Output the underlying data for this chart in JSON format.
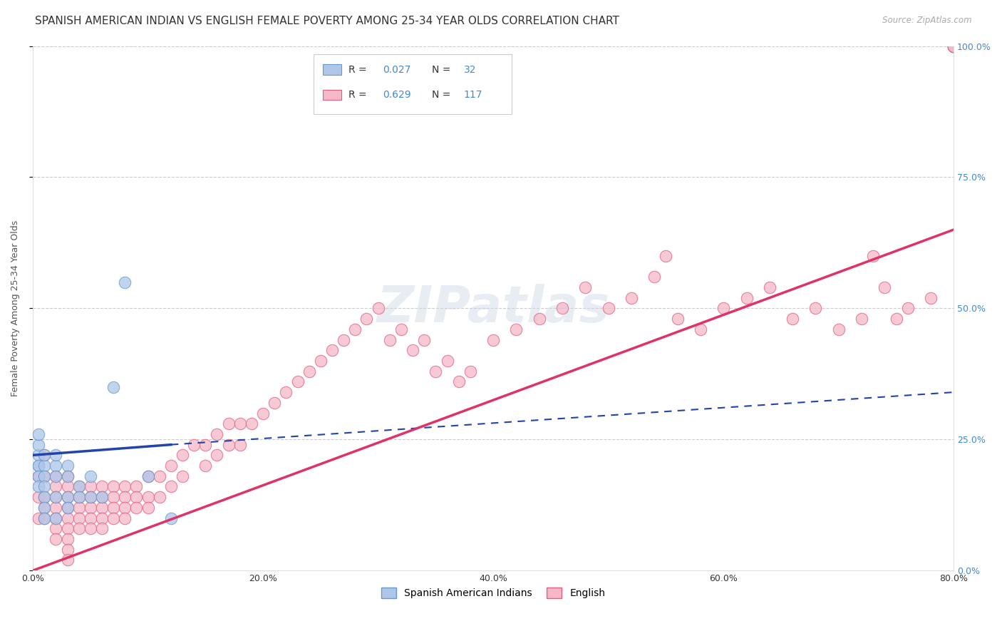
{
  "title": "SPANISH AMERICAN INDIAN VS ENGLISH FEMALE POVERTY AMONG 25-34 YEAR OLDS CORRELATION CHART",
  "source": "Source: ZipAtlas.com",
  "ylabel": "Female Poverty Among 25-34 Year Olds",
  "xlim": [
    0,
    80
  ],
  "ylim": [
    0,
    100
  ],
  "blue_color": "#aec6e8",
  "blue_edge": "#6699cc",
  "pink_color": "#f5b8c8",
  "pink_edge": "#e06080",
  "blue_line_color": "#2244aa",
  "pink_line_color": "#dd3366",
  "legend_label_blue": "Spanish American Indians",
  "legend_label_pink": "English",
  "background_color": "#ffffff",
  "grid_color": "#cccccc",
  "right_axis_color": "#4488cc",
  "watermark": "ZIPatlas",
  "blue_x": [
    0.5,
    0.5,
    0.5,
    0.5,
    0.5,
    0.5,
    0.5,
    1,
    1,
    1,
    1,
    1,
    1,
    1,
    2,
    2,
    2,
    2,
    2,
    3,
    3,
    3,
    3,
    4,
    4,
    5,
    5,
    6,
    7,
    8,
    10,
    12
  ],
  "blue_y": [
    20,
    22,
    24,
    26,
    20,
    18,
    16,
    20,
    22,
    18,
    16,
    14,
    12,
    10,
    20,
    22,
    18,
    14,
    10,
    20,
    18,
    14,
    12,
    16,
    14,
    18,
    14,
    14,
    35,
    55,
    18,
    10
  ],
  "pink_x": [
    0.5,
    0.5,
    0.5,
    1,
    1,
    1,
    1,
    1,
    2,
    2,
    2,
    2,
    2,
    2,
    2,
    3,
    3,
    3,
    3,
    3,
    3,
    3,
    3,
    3,
    4,
    4,
    4,
    4,
    4,
    5,
    5,
    5,
    5,
    5,
    6,
    6,
    6,
    6,
    6,
    7,
    7,
    7,
    7,
    8,
    8,
    8,
    8,
    9,
    9,
    9,
    10,
    10,
    10,
    11,
    11,
    12,
    12,
    13,
    13,
    14,
    15,
    15,
    16,
    16,
    17,
    17,
    18,
    18,
    19,
    20,
    21,
    22,
    23,
    24,
    25,
    26,
    27,
    28,
    29,
    30,
    31,
    32,
    33,
    34,
    35,
    36,
    37,
    38,
    40,
    42,
    44,
    46,
    48,
    50,
    52,
    54,
    55,
    56,
    58,
    60,
    62,
    64,
    66,
    68,
    70,
    72,
    73,
    74,
    75,
    76,
    78,
    80,
    80,
    80,
    80,
    80,
    80
  ],
  "pink_y": [
    18,
    14,
    10,
    22,
    18,
    14,
    12,
    10,
    18,
    16,
    14,
    12,
    10,
    8,
    6,
    18,
    16,
    14,
    12,
    10,
    8,
    6,
    4,
    2,
    16,
    14,
    12,
    10,
    8,
    16,
    14,
    12,
    10,
    8,
    16,
    14,
    12,
    10,
    8,
    16,
    14,
    12,
    10,
    16,
    14,
    12,
    10,
    16,
    14,
    12,
    18,
    14,
    12,
    18,
    14,
    20,
    16,
    22,
    18,
    24,
    24,
    20,
    26,
    22,
    28,
    24,
    28,
    24,
    28,
    30,
    32,
    34,
    36,
    38,
    40,
    42,
    44,
    46,
    48,
    50,
    44,
    46,
    42,
    44,
    38,
    40,
    36,
    38,
    44,
    46,
    48,
    50,
    54,
    50,
    52,
    56,
    60,
    48,
    46,
    50,
    52,
    54,
    48,
    50,
    46,
    48,
    60,
    54,
    48,
    50,
    52,
    100,
    100,
    100,
    100,
    100,
    100
  ],
  "blue_reg_x0": 0,
  "blue_reg_y0": 22,
  "blue_reg_x1": 12,
  "blue_reg_y1": 24,
  "blue_dash_x0": 12,
  "blue_dash_y0": 24,
  "blue_dash_x1": 80,
  "blue_dash_y1": 34,
  "pink_reg_x0": 0,
  "pink_reg_y0": 0,
  "pink_reg_x1": 80,
  "pink_reg_y1": 65,
  "title_fontsize": 11,
  "axis_label_fontsize": 9,
  "tick_fontsize": 9
}
